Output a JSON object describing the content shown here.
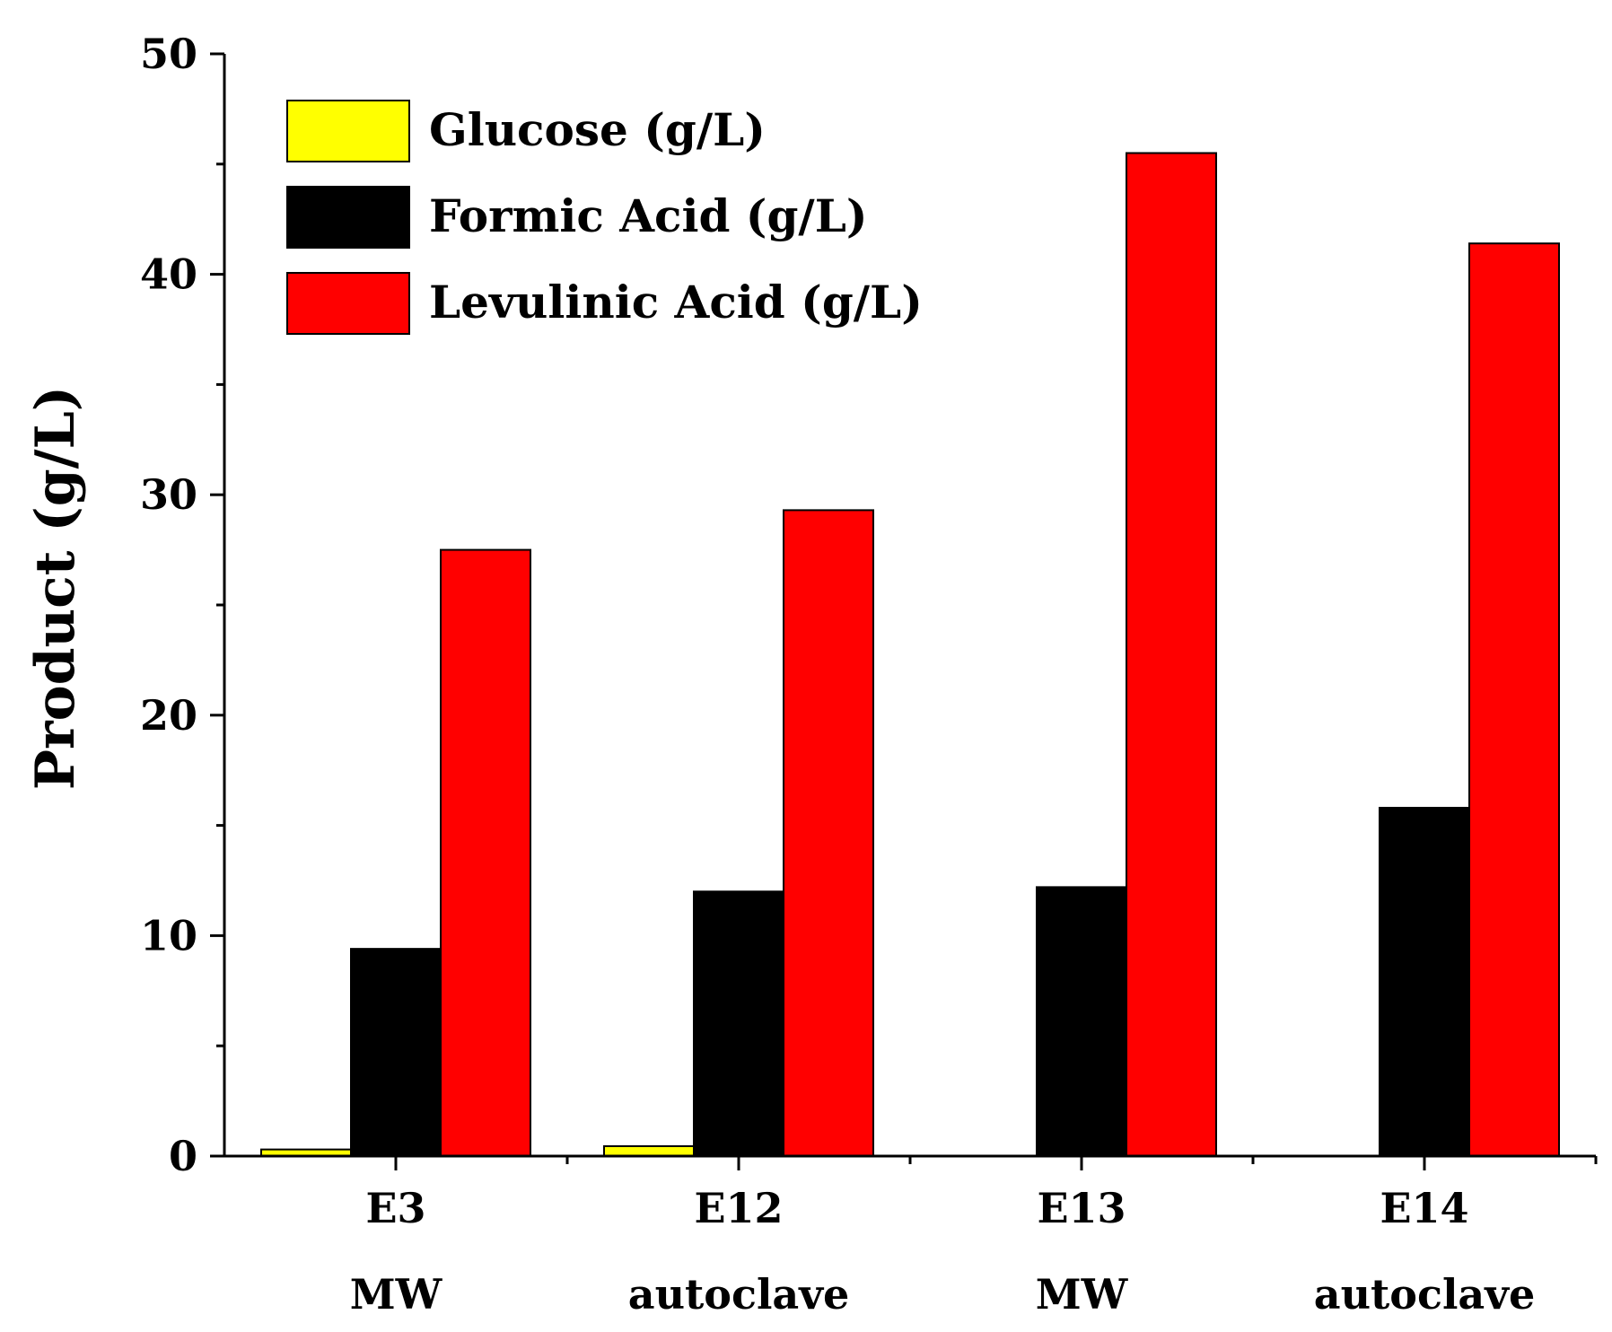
{
  "chart_data": {
    "type": "bar",
    "title": "",
    "xlabel": "",
    "ylabel": "Product (g/L)",
    "ylim": [
      0,
      50
    ],
    "yticks": [
      0,
      10,
      20,
      30,
      40,
      50
    ],
    "grid": false,
    "legend_position": "top-left",
    "categories": [
      {
        "line1": "E3",
        "line2": "MW"
      },
      {
        "line1": "E12",
        "line2": "autoclave"
      },
      {
        "line1": "E13",
        "line2": "MW"
      },
      {
        "line1": "E14",
        "line2": "autoclave"
      }
    ],
    "series": [
      {
        "name": "Glucose (g/L)",
        "color": "#ffff00",
        "values": [
          0.3,
          0.45,
          0,
          0
        ]
      },
      {
        "name": "Formic Acid (g/L)",
        "color": "#000000",
        "values": [
          9.4,
          12.0,
          12.2,
          15.8
        ]
      },
      {
        "name": "Levulinic Acid (g/L)",
        "color": "#ff0000",
        "values": [
          27.5,
          29.3,
          45.5,
          41.4
        ]
      }
    ]
  }
}
